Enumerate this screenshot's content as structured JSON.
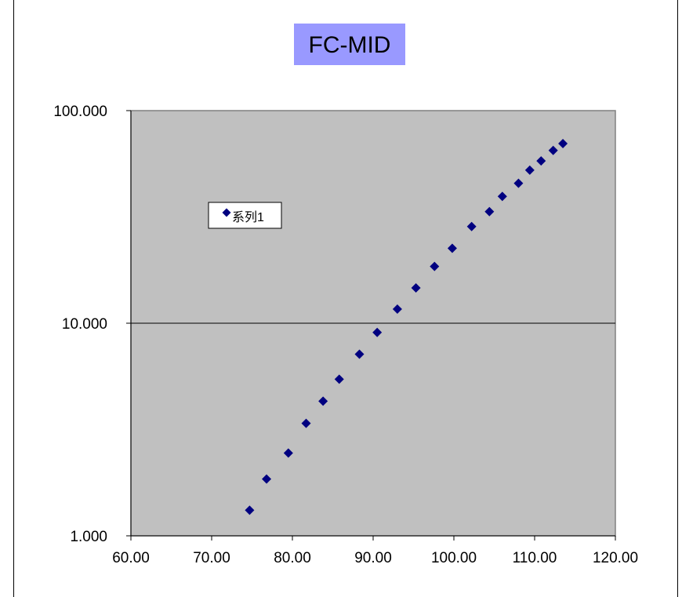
{
  "chart_data": {
    "type": "scatter",
    "title": "FC-MID",
    "xlabel": "",
    "ylabel": "",
    "xlim": [
      60,
      120
    ],
    "ylim": [
      1,
      100
    ],
    "yscale": "log",
    "x_ticks": [
      60,
      70,
      80,
      90,
      100,
      110,
      120
    ],
    "x_tick_labels": [
      "60.00",
      "70.00",
      "80.00",
      "90.00",
      "100.00",
      "110.00",
      "120.00"
    ],
    "y_ticks": [
      1,
      10,
      100
    ],
    "y_tick_labels": [
      "1.000",
      "10.000",
      "100.000"
    ],
    "grid": "horizontal major gridlines",
    "legend_placement": "upper-left inside plot area",
    "colors": {
      "plot_background": "#c0c0c0",
      "marker": "#000080",
      "title_background": "#9999ff"
    },
    "series": [
      {
        "name": "系列1",
        "marker": "diamond",
        "x": [
          74.7,
          76.8,
          79.5,
          81.7,
          83.8,
          85.8,
          88.3,
          90.5,
          93.0,
          95.3,
          97.6,
          99.8,
          102.2,
          104.4,
          106.0,
          108.0,
          109.4,
          110.8,
          112.3,
          113.5
        ],
        "y": [
          1.32,
          1.85,
          2.45,
          3.38,
          4.3,
          5.45,
          7.15,
          9.05,
          11.65,
          14.65,
          18.5,
          22.5,
          28.5,
          33.5,
          39.5,
          45.5,
          52.5,
          58.0,
          65.0,
          70.0
        ]
      }
    ]
  }
}
